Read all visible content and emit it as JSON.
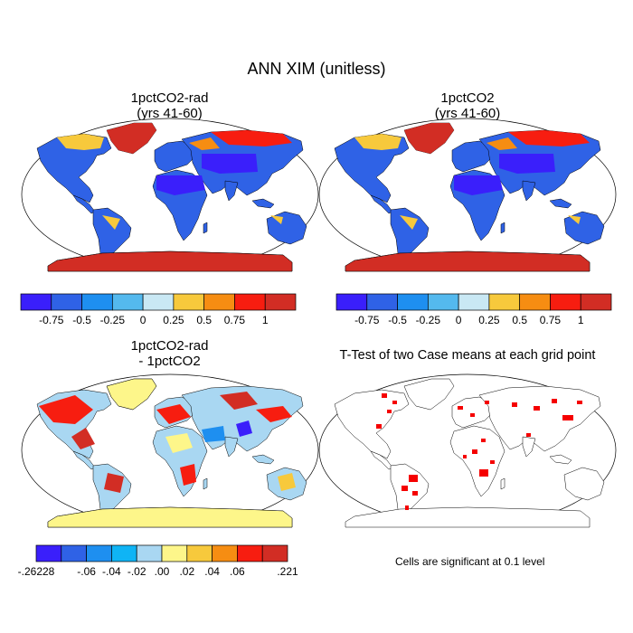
{
  "main_title": "ANN XIM (unitless)",
  "panels": [
    {
      "title": "1pctCO2-rad\n(yrs 41-60)"
    },
    {
      "title": "1pctCO2\n(yrs 41-60)"
    },
    {
      "title": "1pctCO2-rad\n- 1pctCO2"
    },
    {
      "title": "T-Test of two Case means at each grid point"
    }
  ],
  "colorbars": {
    "top": {
      "colors": [
        "#3a1ffb",
        "#2f62e6",
        "#1e8ff0",
        "#54b9ee",
        "#c9e8f4",
        "#f7c93c",
        "#f68d12",
        "#f71d10",
        "#d22d24"
      ],
      "ticks": [
        "-0.75",
        "-0.5",
        "-0.25",
        "0",
        "0.25",
        "0.5",
        "0.75",
        "1"
      ]
    },
    "bottom": {
      "colors": [
        "#3a1ffb",
        "#2f62e6",
        "#1e8ff0",
        "#0fb4f5",
        "#a9d7f2",
        "#fdf68a",
        "#f7c93c",
        "#f68d12",
        "#f71d10",
        "#d22d24"
      ],
      "ticks": [
        "-.26228",
        "-.06",
        "-.04",
        "-.02",
        ".00",
        ".02",
        ".04",
        ".06",
        ".221"
      ]
    }
  },
  "significance_note": "Cells are significant at 0.1 level",
  "colors": {
    "significant": "#f50000",
    "land_outline": "#000000"
  }
}
